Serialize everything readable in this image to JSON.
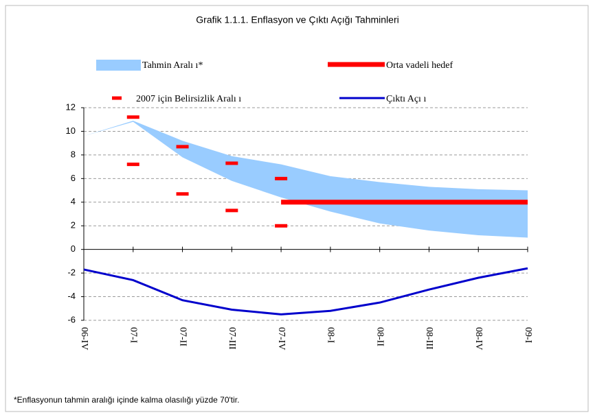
{
  "chart_data": {
    "type": "line",
    "title": "Grafik 1.1.1. Enflasyon ve Çıktı Açığı Tahminleri",
    "categories": [
      "06-IV",
      "07-I",
      "07-II",
      "07-III",
      "07-IV",
      "08-I",
      "08-II",
      "08-III",
      "08-IV",
      "09-I"
    ],
    "ylim": [
      -6,
      12
    ],
    "yticks": [
      -6,
      -4,
      -2,
      0,
      2,
      4,
      6,
      8,
      10,
      12
    ],
    "grid": true,
    "band": {
      "name": "Tahmin Aralı ı*",
      "color": "#99ccff",
      "upper": [
        9.6,
        10.9,
        9.2,
        7.9,
        7.2,
        6.2,
        5.7,
        5.3,
        5.1,
        5.0
      ],
      "lower": [
        9.6,
        10.8,
        7.8,
        5.8,
        4.4,
        3.2,
        2.2,
        1.6,
        1.2,
        1.0
      ]
    },
    "uncertainty": {
      "name": "2007 için Belirsizlik Aralı ı",
      "color": "#ff0000",
      "upper": [
        null,
        11.2,
        8.7,
        7.3,
        6.0,
        null,
        null,
        null,
        null,
        null
      ],
      "lower": [
        null,
        7.2,
        4.7,
        3.3,
        2.0,
        null,
        null,
        null,
        null,
        null
      ]
    },
    "series": [
      {
        "name": "Orta vadeli hedef",
        "color": "#ff0000",
        "values": [
          null,
          null,
          null,
          null,
          4,
          4,
          4,
          4,
          4,
          4
        ]
      },
      {
        "name": "Çıktı Açı ı",
        "color": "#0000cc",
        "values": [
          -1.7,
          -2.6,
          -4.3,
          -5.1,
          -5.5,
          -5.2,
          -4.5,
          -3.4,
          -2.4,
          -1.6
        ]
      }
    ],
    "footnote": "*Enflasyonun tahmin aralığı içinde kalma olasılığı yüzde 70'tir."
  }
}
